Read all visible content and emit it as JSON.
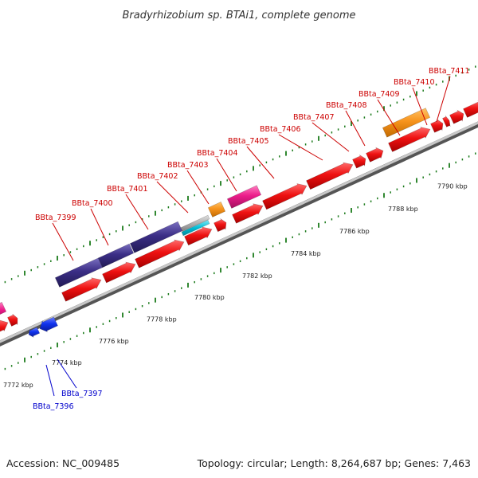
{
  "title": "Bradyrhizobium sp. BTAi1, complete genome",
  "footer": {
    "accession": "Accession: NC_009485",
    "topology": "Topology: circular; Length: 8,264,687 bp; Genes: 7,463"
  },
  "scale": {
    "tick_labels": [
      "7772 kbp",
      "7774 kbp",
      "7776 kbp",
      "7778 kbp",
      "7780 kbp",
      "7782 kbp",
      "7784 kbp",
      "7786 kbp",
      "7788 kbp",
      "7790 kbp"
    ]
  },
  "genes": [
    {
      "id": "BBta_7396",
      "color": "#0000cc"
    },
    {
      "id": "BBta_7397",
      "color": "#0000cc"
    },
    {
      "id": "BBta_7399",
      "color": "#cc0000"
    },
    {
      "id": "BBta_7400",
      "color": "#cc0000"
    },
    {
      "id": "BBta_7401",
      "color": "#cc0000"
    },
    {
      "id": "BBta_7402",
      "color": "#cc0000"
    },
    {
      "id": "BBta_7403",
      "color": "#cc0000"
    },
    {
      "id": "BBta_7404",
      "color": "#cc0000"
    },
    {
      "id": "BBta_7405",
      "color": "#cc0000"
    },
    {
      "id": "BBta_7406",
      "color": "#cc0000"
    },
    {
      "id": "BBta_7407",
      "color": "#cc0000"
    },
    {
      "id": "BBta_7408",
      "color": "#cc0000"
    },
    {
      "id": "BBta_7409",
      "color": "#cc0000"
    },
    {
      "id": "BBta_7410",
      "color": "#cc0000"
    },
    {
      "id": "BBta_7411",
      "color": "#cc0000"
    }
  ],
  "colors": {
    "forward_cds": "#ee1111",
    "reverse_cds": "#1133ee",
    "cog_indigo": "#3b2e86",
    "cog_orange": "#f7941d",
    "cog_magenta": "#ec1c8a",
    "cog_cyan": "#00bcd4",
    "cog_gray": "#b0b0b0",
    "backbone": "#8a8a8a",
    "ticks": "#1a7a1a"
  }
}
